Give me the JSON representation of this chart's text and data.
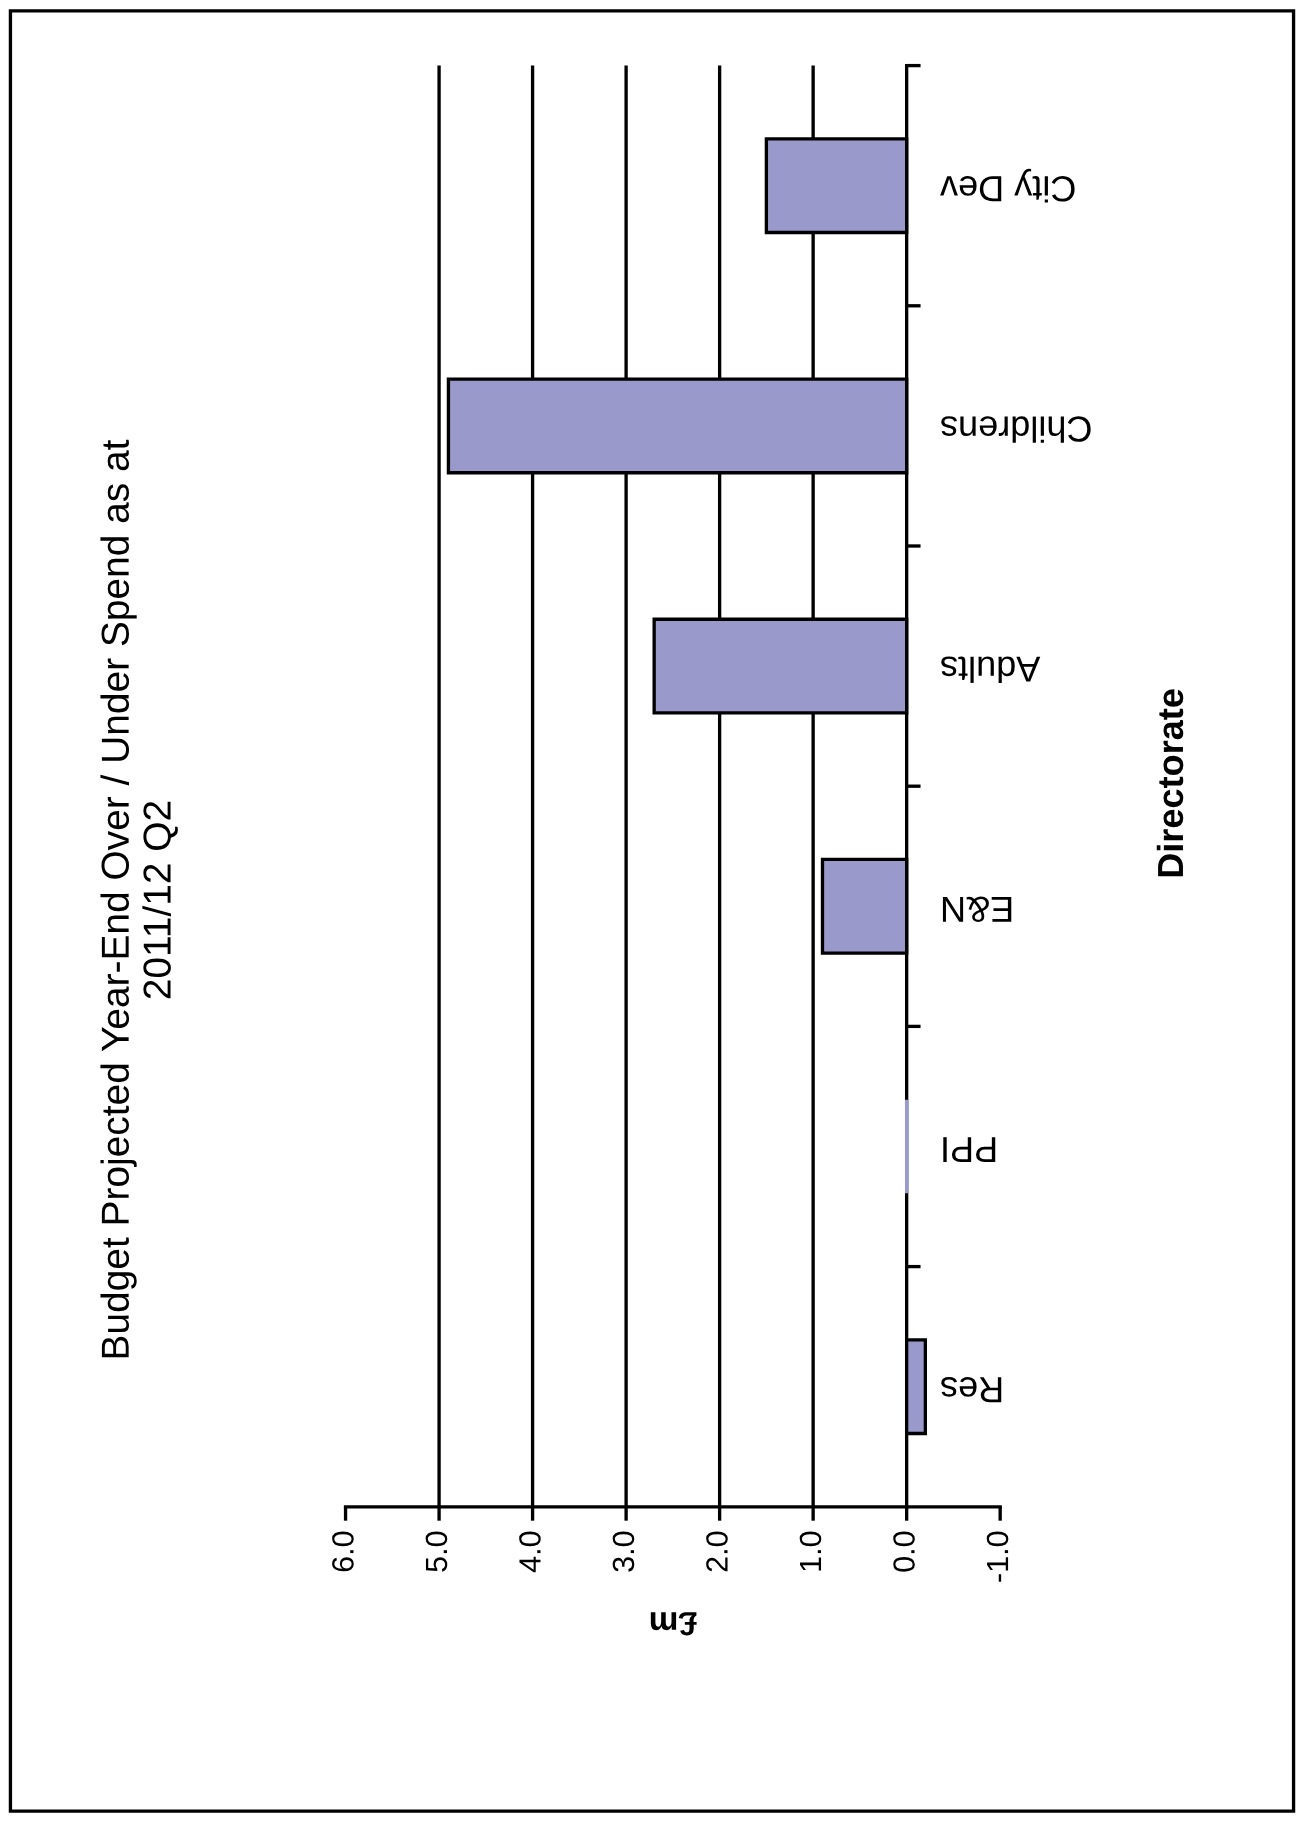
{
  "chart_data": {
    "type": "bar",
    "orientation": "horizontal",
    "title": "Budget Projected Year-End Over / Under Spend as at\n2011/12 Q2",
    "xlabel": "£m",
    "ylabel": "Directorate",
    "categories": [
      "City Dev",
      "Childrens",
      "Adults",
      "E&N",
      "PPI",
      "Res"
    ],
    "values": [
      1.5,
      4.9,
      2.7,
      0.9,
      0,
      -0.2
    ],
    "color": "#9999cc",
    "xlim": [
      6,
      -1
    ],
    "xticks": [
      {
        "value": 6,
        "label": "6.0"
      },
      {
        "value": 5,
        "label": "5.0"
      },
      {
        "value": 4,
        "label": "4.0"
      },
      {
        "value": 3,
        "label": "3.0"
      },
      {
        "value": 2,
        "label": "2.0"
      },
      {
        "value": 1,
        "label": "1.0"
      },
      {
        "value": 0,
        "label": "0.0"
      },
      {
        "value": -1,
        "label": "-1.0"
      }
    ],
    "grid": "x"
  }
}
